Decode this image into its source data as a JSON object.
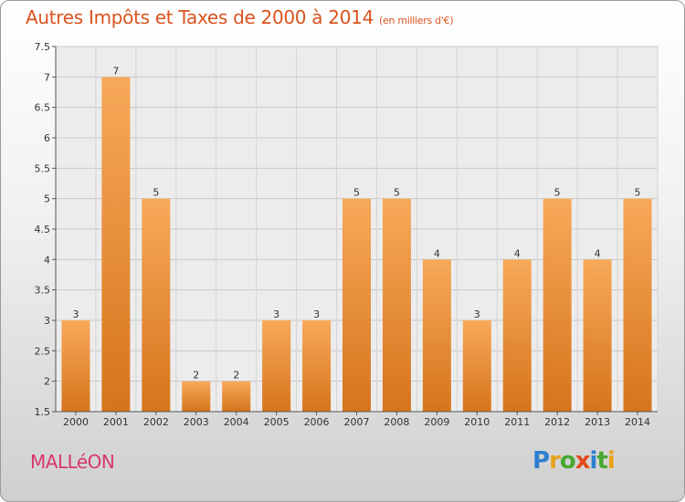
{
  "header": {
    "title": "Autres Impôts et Taxes de 2000 à 2014",
    "subtitle": "(en milliers d'€)"
  },
  "footer": {
    "commune": "MALLéON",
    "logo": "Proxiti"
  },
  "colors": {
    "title": "#d9531e",
    "commune": "#d9366e",
    "bar_light": "#f7a959",
    "bar_dark": "#d6741c"
  },
  "chart_data": {
    "type": "bar",
    "title": "Autres Impôts et Taxes de 2000 à 2014",
    "subtitle": "(en milliers d'€)",
    "categories": [
      "2000",
      "2001",
      "2002",
      "2003",
      "2004",
      "2005",
      "2006",
      "2007",
      "2008",
      "2009",
      "2010",
      "2011",
      "2012",
      "2013",
      "2014"
    ],
    "values": [
      3,
      7,
      5,
      2,
      2,
      3,
      3,
      5,
      5,
      4,
      3,
      4,
      5,
      4,
      5
    ],
    "ylim": [
      1.5,
      7.5
    ],
    "yticks": [
      "1.5",
      "2",
      "2.5",
      "3",
      "3.5",
      "4",
      "4.5",
      "5",
      "5.5",
      "6",
      "6.5",
      "7",
      "7.5"
    ],
    "grid": true,
    "xlabel": "",
    "ylabel": ""
  }
}
